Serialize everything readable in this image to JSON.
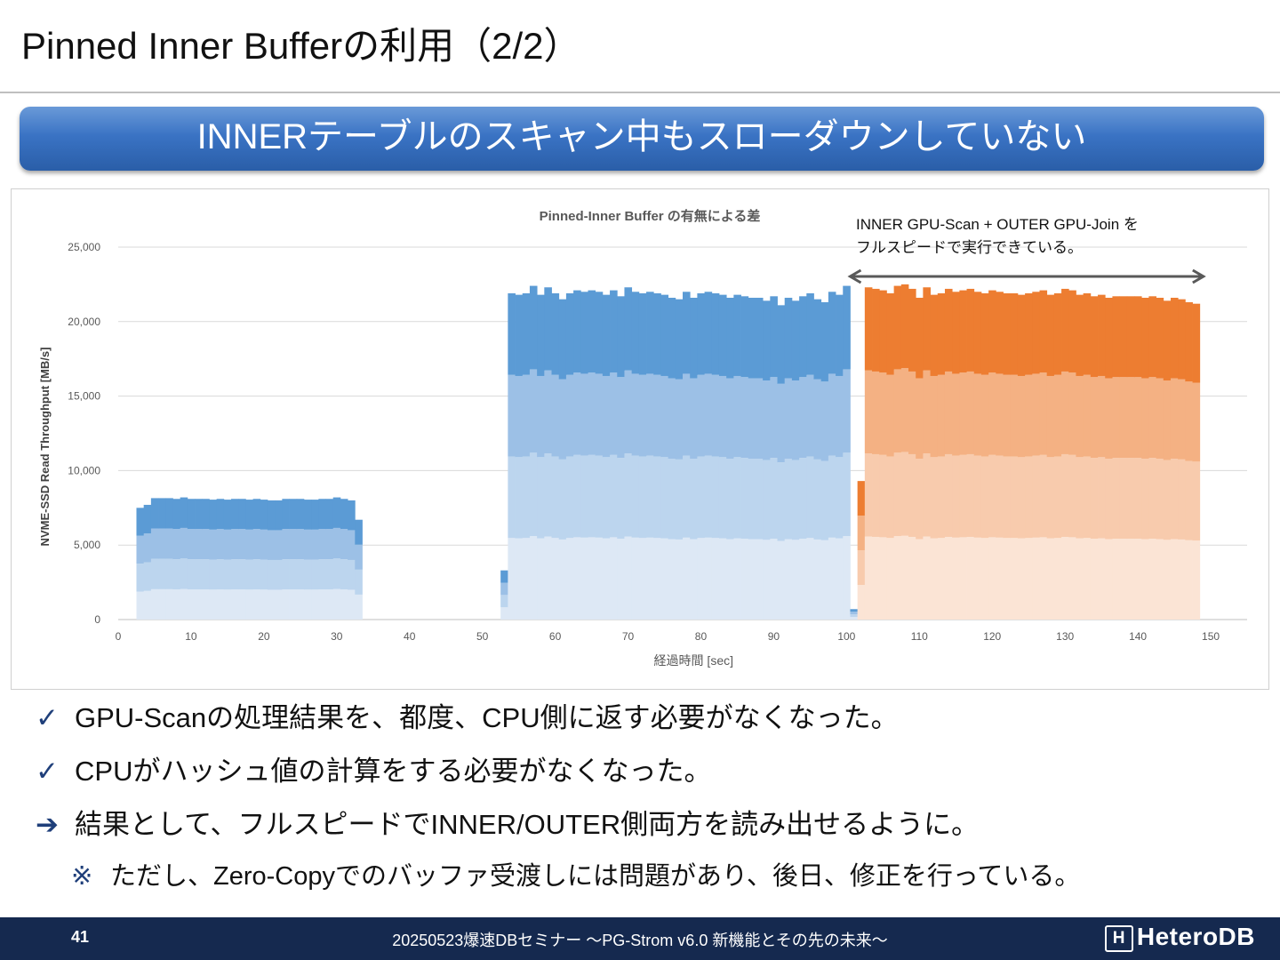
{
  "slide": {
    "title": "Pinned Inner Bufferの利用（2/2）",
    "banner": "INNERテーブルのスキャン中もスローダウンしていない"
  },
  "chart_data": {
    "type": "bar",
    "stacked": true,
    "title": "Pinned-Inner Buffer の有無による差",
    "xlabel": "経過時間 [sec]",
    "ylabel": "NVME-SSD Read Throughput [MB/s]",
    "xlim": [
      0,
      155
    ],
    "ylim": [
      0,
      25000
    ],
    "xticks": [
      0,
      10,
      20,
      30,
      40,
      50,
      60,
      70,
      80,
      90,
      100,
      110,
      120,
      130,
      140,
      150
    ],
    "yticks": [
      0,
      5000,
      10000,
      15000,
      20000,
      25000
    ],
    "ytick_labels": [
      "0",
      "5,000",
      "10,000",
      "15,000",
      "20,000",
      "25,000"
    ],
    "grid": true,
    "legend": "none",
    "annotation": {
      "text_line1": "INNER GPU-Scan + OUTER GPU-Join を",
      "text_line2": "フルスピードで実行できている。",
      "arrow_from_x": 100.5,
      "arrow_to_x": 149
    },
    "segments": [
      {
        "group": "blue",
        "start_x": 2.5,
        "width": 1,
        "series_colors": [
          "#dde8f5",
          "#bcd5ee",
          "#9cc0e6",
          "#5b9bd5"
        ],
        "totals": [
          7500,
          7700,
          8150,
          8150,
          8150,
          8100,
          8200,
          8100,
          8100,
          8100,
          8050,
          8100,
          8050,
          8100,
          8100,
          8050,
          8100,
          8050,
          8000,
          8000,
          8100,
          8100,
          8100,
          8050,
          8050,
          8100,
          8100,
          8200,
          8100,
          8000,
          6700
        ]
      },
      {
        "group": "blue",
        "start_x": 52.5,
        "width": 1,
        "series_colors": [
          "#dde8f5",
          "#bcd5ee",
          "#9cc0e6",
          "#5b9bd5"
        ],
        "totals": [
          3300,
          21900,
          21800,
          21900,
          22400,
          21800,
          22300,
          21900,
          21500,
          21900,
          22100,
          22000,
          22100,
          22000,
          21800,
          22100,
          21700,
          22300,
          22000,
          21900,
          22000,
          21900,
          21800,
          21600,
          21500,
          22000,
          21600,
          21900,
          22000,
          21900,
          21800,
          21600,
          21800,
          21700,
          21600,
          21600,
          21400,
          21700,
          21100,
          21600,
          21400,
          21700,
          21900,
          21500,
          21300,
          22000,
          21800,
          22400,
          700
        ]
      },
      {
        "group": "orange",
        "start_x": 101.5,
        "width": 1,
        "series_colors": [
          "#fbe4d5",
          "#f8cbad",
          "#f4b183",
          "#ed7d31"
        ],
        "totals": [
          9300,
          22300,
          22200,
          22100,
          21900,
          22400,
          22500,
          22200,
          21600,
          22300,
          21800,
          21900,
          22200,
          22000,
          22100,
          22200,
          22000,
          21900,
          22100,
          22000,
          21900,
          21900,
          21800,
          21900,
          22000,
          22100,
          21800,
          21900,
          22200,
          22100,
          21800,
          21900,
          21700,
          21800,
          21600,
          21700,
          21700,
          21700,
          21700,
          21600,
          21700,
          21600,
          21400,
          21600,
          21500,
          21300,
          21200
        ]
      }
    ]
  },
  "bullets": [
    {
      "mark": "✓",
      "text": "GPU-Scanの処理結果を、都度、CPU側に返す必要がなくなった。"
    },
    {
      "mark": "✓",
      "text": "CPUがハッシュ値の計算をする必要がなくなった。"
    },
    {
      "mark": "➔",
      "text": "結果として、フルスピードでINNER/OUTER側両方を読み出せるように。"
    },
    {
      "mark": "※",
      "text": "ただし、Zero-Copyでのバッファ受渡しには問題があり、後日、修正を行っている。"
    }
  ],
  "footer": {
    "page_number": "41",
    "event": "20250523爆速DBセミナー ～PG-Strom v6.0 新機能とその先の未来～",
    "logo_mark": "H",
    "logo_text": "HeteroDB"
  },
  "colors": {
    "banner": "#3a73c4",
    "footer": "#15294f",
    "arrow": "#595959"
  }
}
